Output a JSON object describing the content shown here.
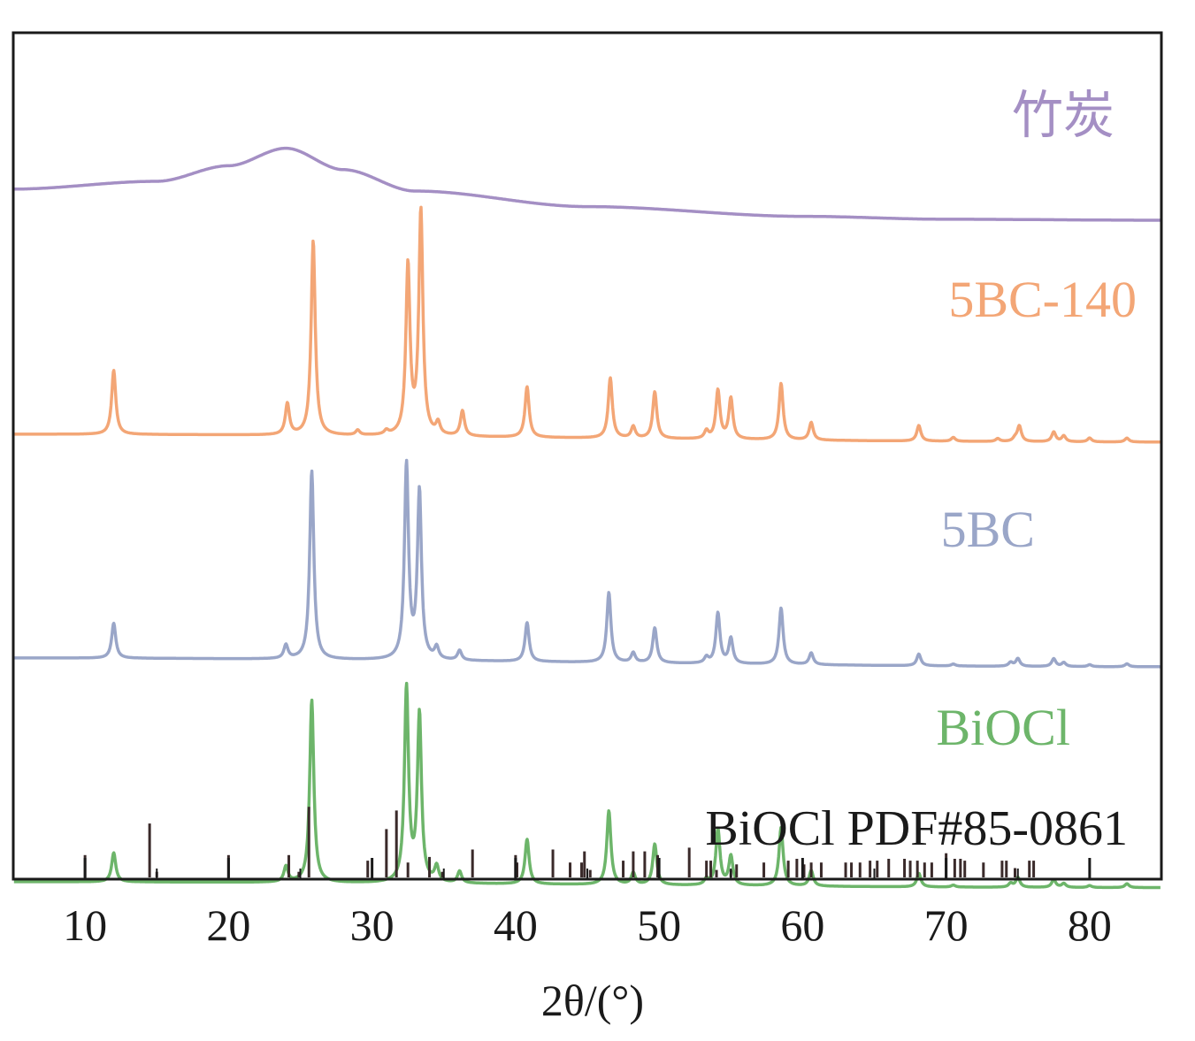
{
  "chart_data": {
    "type": "line",
    "xlabel": "2θ/(°)",
    "xlim": [
      5,
      85
    ],
    "x_ticks": [
      10,
      20,
      30,
      40,
      50,
      60,
      70,
      80
    ],
    "y_ticks_shown": false,
    "grid": false,
    "series": [
      {
        "name": "竹炭",
        "color": "#a48fc4",
        "offset": 3.55,
        "baseline": [
          [
            5,
            0.16
          ],
          [
            15,
            0.2
          ],
          [
            20,
            0.28
          ],
          [
            24,
            0.37
          ],
          [
            28,
            0.26
          ],
          [
            33,
            0.15
          ],
          [
            45,
            0.07
          ],
          [
            60,
            0.02
          ],
          [
            70,
            0.005
          ],
          [
            85,
            0.0
          ]
        ],
        "peaks": []
      },
      {
        "name": "5BC-140",
        "color": "#f3a676",
        "offset": 2.45,
        "baseline": [
          [
            5,
            0.0
          ],
          [
            85,
            -0.04
          ]
        ],
        "peaks": [
          [
            12.0,
            0.33
          ],
          [
            24.1,
            0.16
          ],
          [
            25.9,
            1.0
          ],
          [
            29.0,
            0.025
          ],
          [
            31.0,
            0.02
          ],
          [
            32.5,
            0.87
          ],
          [
            33.4,
            1.15
          ],
          [
            34.6,
            0.06
          ],
          [
            36.3,
            0.13
          ],
          [
            40.8,
            0.26
          ],
          [
            46.6,
            0.31
          ],
          [
            48.2,
            0.06
          ],
          [
            49.7,
            0.24
          ],
          [
            53.3,
            0.04
          ],
          [
            54.1,
            0.25
          ],
          [
            55.0,
            0.21
          ],
          [
            58.5,
            0.29
          ],
          [
            60.6,
            0.09
          ],
          [
            68.1,
            0.08
          ],
          [
            70.5,
            0.02
          ],
          [
            73.6,
            0.015
          ],
          [
            74.8,
            0.015
          ],
          [
            75.1,
            0.08
          ],
          [
            77.5,
            0.05
          ],
          [
            78.2,
            0.03
          ],
          [
            80.0,
            0.02
          ],
          [
            82.6,
            0.02
          ]
        ]
      },
      {
        "name": "5BC",
        "color": "#9aa6c8",
        "offset": 1.3,
        "baseline": [
          [
            5,
            0.0
          ],
          [
            85,
            -0.045
          ]
        ],
        "peaks": [
          [
            12.0,
            0.18
          ],
          [
            24.0,
            0.07
          ],
          [
            25.8,
            0.97
          ],
          [
            32.4,
            1.0
          ],
          [
            33.3,
            0.86
          ],
          [
            34.5,
            0.06
          ],
          [
            36.1,
            0.05
          ],
          [
            40.8,
            0.2
          ],
          [
            46.5,
            0.36
          ],
          [
            48.2,
            0.05
          ],
          [
            49.7,
            0.18
          ],
          [
            53.3,
            0.03
          ],
          [
            54.1,
            0.26
          ],
          [
            55.0,
            0.13
          ],
          [
            58.5,
            0.29
          ],
          [
            60.6,
            0.06
          ],
          [
            68.1,
            0.06
          ],
          [
            70.5,
            0.01
          ],
          [
            74.5,
            0.02
          ],
          [
            75.0,
            0.04
          ],
          [
            77.5,
            0.04
          ],
          [
            78.2,
            0.02
          ],
          [
            80.0,
            0.01
          ],
          [
            82.6,
            0.015
          ]
        ]
      },
      {
        "name": "BiOCl",
        "color": "#6db56a",
        "offset": 0.15,
        "baseline": [
          [
            5,
            0.0
          ],
          [
            85,
            -0.03
          ]
        ],
        "peaks": [
          [
            12.0,
            0.15
          ],
          [
            24.0,
            0.08
          ],
          [
            25.8,
            0.94
          ],
          [
            32.4,
            1.0
          ],
          [
            33.3,
            0.86
          ],
          [
            34.5,
            0.08
          ],
          [
            36.1,
            0.06
          ],
          [
            40.8,
            0.23
          ],
          [
            46.5,
            0.38
          ],
          [
            48.2,
            0.06
          ],
          [
            49.7,
            0.21
          ],
          [
            53.3,
            0.03
          ],
          [
            54.1,
            0.29
          ],
          [
            55.0,
            0.15
          ],
          [
            58.5,
            0.3
          ],
          [
            60.6,
            0.08
          ],
          [
            68.1,
            0.07
          ],
          [
            70.5,
            0.01
          ],
          [
            74.5,
            0.02
          ],
          [
            75.0,
            0.05
          ],
          [
            77.5,
            0.04
          ],
          [
            78.2,
            0.02
          ],
          [
            80.0,
            0.01
          ],
          [
            82.6,
            0.02
          ]
        ]
      }
    ],
    "reference": {
      "label": "BiOCl PDF#85-0861",
      "color": "#3a2a2a",
      "sticks": [
        [
          10.0,
          0.12
        ],
        [
          14.5,
          0.29
        ],
        [
          15.0,
          0.03
        ],
        [
          20.0,
          0.12
        ],
        [
          24.2,
          0.12
        ],
        [
          24.9,
          0.03
        ],
        [
          25.6,
          0.38
        ],
        [
          29.7,
          0.09
        ],
        [
          31.0,
          0.26
        ],
        [
          31.7,
          0.36
        ],
        [
          32.5,
          0.08
        ],
        [
          34.0,
          0.11
        ],
        [
          34.9,
          0.03
        ],
        [
          37.0,
          0.15
        ],
        [
          40.0,
          0.12
        ],
        [
          40.1,
          0.08
        ],
        [
          42.6,
          0.15
        ],
        [
          43.8,
          0.08
        ],
        [
          44.6,
          0.08
        ],
        [
          44.8,
          0.14
        ],
        [
          45.2,
          0.04
        ],
        [
          47.5,
          0.09
        ],
        [
          48.2,
          0.14
        ],
        [
          49.0,
          0.14
        ],
        [
          49.9,
          0.12
        ],
        [
          52.1,
          0.16
        ],
        [
          53.3,
          0.09
        ],
        [
          53.6,
          0.09
        ],
        [
          54.0,
          0.04
        ],
        [
          55.0,
          0.04
        ],
        [
          55.4,
          0.07
        ],
        [
          57.3,
          0.08
        ],
        [
          59.0,
          0.09
        ],
        [
          59.6,
          0.1
        ],
        [
          60.1,
          0.07
        ],
        [
          60.6,
          0.08
        ],
        [
          61.3,
          0.08
        ],
        [
          63.0,
          0.08
        ],
        [
          63.4,
          0.08
        ],
        [
          64.0,
          0.08
        ],
        [
          64.7,
          0.09
        ],
        [
          65.2,
          0.09
        ],
        [
          66.0,
          0.1
        ],
        [
          67.1,
          0.1
        ],
        [
          67.5,
          0.09
        ],
        [
          68.0,
          0.09
        ],
        [
          68.5,
          0.08
        ],
        [
          69.0,
          0.08
        ],
        [
          70.0,
          0.13
        ],
        [
          70.6,
          0.1
        ],
        [
          71.0,
          0.1
        ],
        [
          71.3,
          0.09
        ],
        [
          72.6,
          0.08
        ],
        [
          73.9,
          0.09
        ],
        [
          74.2,
          0.09
        ],
        [
          74.8,
          0.05
        ],
        [
          75.8,
          0.09
        ],
        [
          76.1,
          0.09
        ]
      ]
    }
  }
}
